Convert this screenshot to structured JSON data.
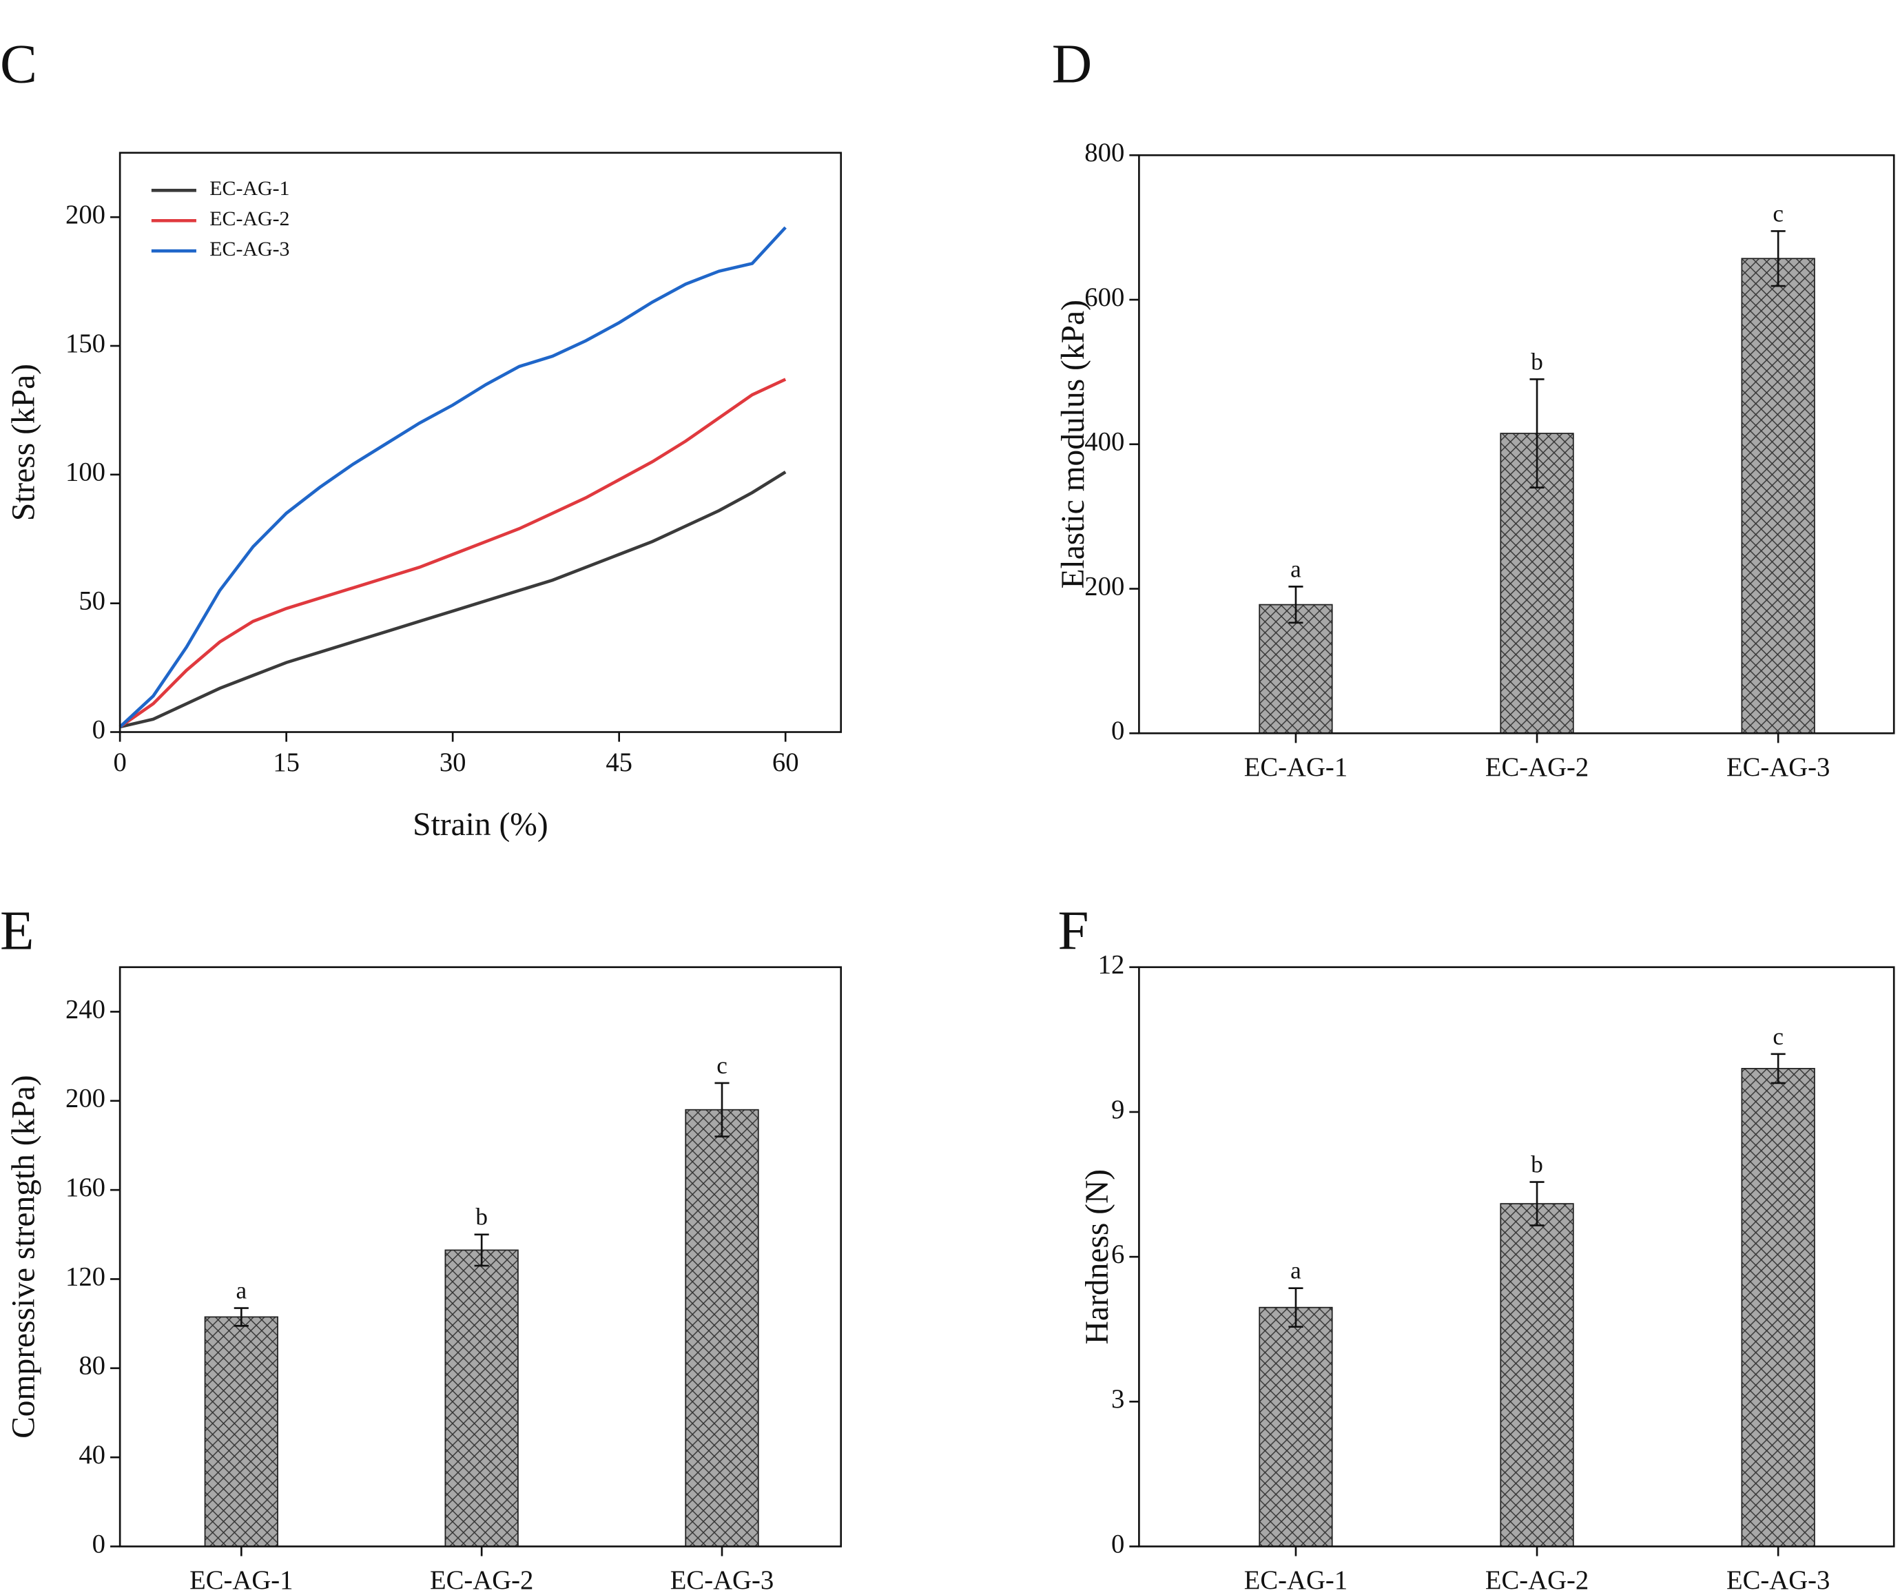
{
  "chart_data": [
    {
      "type": "line",
      "panel_label": "C",
      "x_label": "Strain (%)",
      "y_label": "Stress (kPa)",
      "x": [
        0,
        3,
        6,
        9,
        12,
        15,
        18,
        21,
        24,
        27,
        30,
        33,
        36,
        39,
        42,
        45,
        48,
        51,
        54,
        57,
        60
      ],
      "series": [
        {
          "name": "EC-AG-1",
          "color": "#3a3a3a",
          "values": [
            2,
            5,
            11,
            17,
            22,
            27,
            31,
            35,
            39,
            43,
            47,
            51,
            55,
            59,
            64,
            69,
            74,
            80,
            86,
            93,
            101
          ]
        },
        {
          "name": "EC-AG-2",
          "color": "#e0393e",
          "values": [
            2,
            11,
            24,
            35,
            43,
            48,
            52,
            56,
            60,
            64,
            69,
            74,
            79,
            85,
            91,
            98,
            105,
            113,
            122,
            131,
            137
          ]
        },
        {
          "name": "EC-AG-3",
          "color": "#1f66c9",
          "values": [
            2,
            14,
            33,
            55,
            72,
            85,
            95,
            104,
            112,
            120,
            127,
            135,
            142,
            146,
            152,
            159,
            167,
            174,
            179,
            182,
            196
          ]
        }
      ],
      "xlim": [
        0,
        65
      ],
      "xticks": [
        0,
        15,
        30,
        45,
        60
      ],
      "ylim": [
        0,
        225
      ],
      "yticks": [
        0,
        50,
        100,
        150,
        200
      ],
      "legend": "upper-left"
    },
    {
      "type": "bar",
      "panel_label": "D",
      "y_label": "Elastic modulus (kPa)",
      "categories": [
        "EC-AG-1",
        "EC-AG-2",
        "EC-AG-3"
      ],
      "values": [
        178,
        415,
        657
      ],
      "errors": [
        25,
        75,
        38
      ],
      "annotations": [
        "a",
        "b",
        "c"
      ],
      "color": "#a8a8a8",
      "ylim": [
        0,
        800
      ],
      "yticks": [
        0,
        200,
        400,
        600,
        800
      ]
    },
    {
      "type": "bar",
      "panel_label": "E",
      "y_label": "Compressive strength (kPa)",
      "categories": [
        "EC-AG-1",
        "EC-AG-2",
        "EC-AG-3"
      ],
      "values": [
        103,
        133,
        196
      ],
      "errors": [
        4,
        7,
        12
      ],
      "annotations": [
        "a",
        "b",
        "c"
      ],
      "color": "#a8a8a8",
      "ylim": [
        0,
        260
      ],
      "yticks": [
        0,
        40,
        80,
        120,
        160,
        200,
        240
      ]
    },
    {
      "type": "bar",
      "panel_label": "F",
      "y_label": "Hardness (N)",
      "categories": [
        "EC-AG-1",
        "EC-AG-2",
        "EC-AG-3"
      ],
      "values": [
        4.95,
        7.1,
        9.9
      ],
      "errors": [
        0.4,
        0.45,
        0.3
      ],
      "annotations": [
        "a",
        "b",
        "c"
      ],
      "color": "#a8a8a8",
      "ylim": [
        0,
        12
      ],
      "yticks": [
        0,
        3,
        6,
        9,
        12
      ]
    }
  ]
}
